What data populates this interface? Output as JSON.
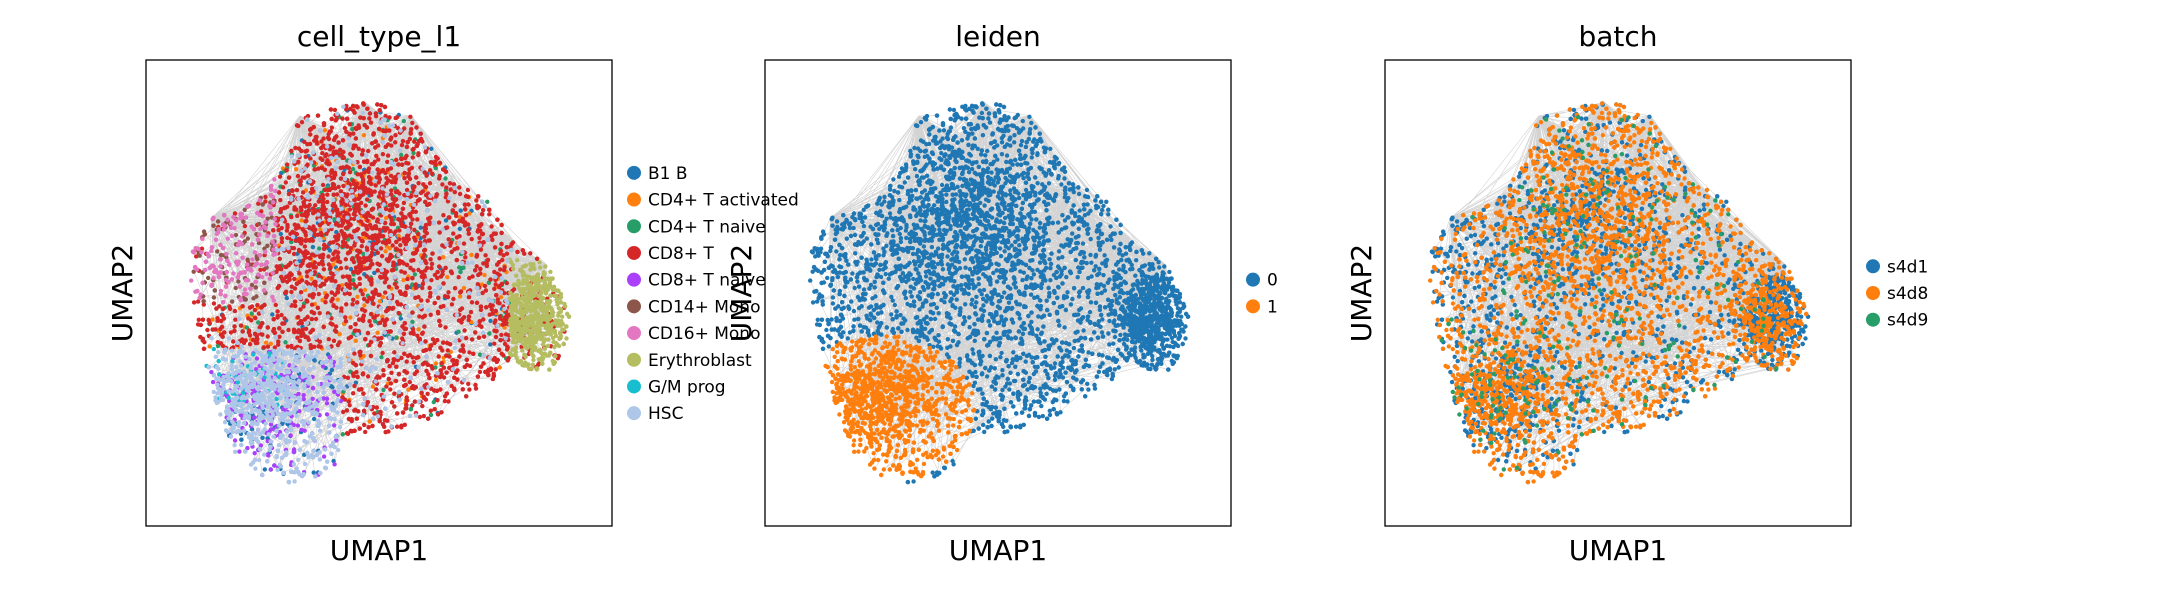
{
  "chart_data": [
    {
      "type": "scatter",
      "title": "cell_type_l1",
      "xlabel": "UMAP1",
      "ylabel": "UMAP2",
      "grid": false,
      "legend": "right",
      "series": [
        {
          "name": "B1 B",
          "color": "#1f77b4"
        },
        {
          "name": "CD4+ T activated",
          "color": "#ff7f0e"
        },
        {
          "name": "CD4+ T naive",
          "color": "#279e68"
        },
        {
          "name": "CD8+ T",
          "color": "#d62728"
        },
        {
          "name": "CD8+ T naive",
          "color": "#aa40fc"
        },
        {
          "name": "CD14+ Mono",
          "color": "#8c564b"
        },
        {
          "name": "CD16+ Mono",
          "color": "#e377c2"
        },
        {
          "name": "Erythroblast",
          "color": "#b5bd61"
        },
        {
          "name": "G/M prog",
          "color": "#17becf"
        },
        {
          "name": "HSC",
          "color": "#aec7e8"
        }
      ]
    },
    {
      "type": "scatter",
      "title": "leiden",
      "xlabel": "UMAP1",
      "ylabel": "UMAP2",
      "grid": false,
      "legend": "right",
      "series": [
        {
          "name": "0",
          "color": "#1f77b4"
        },
        {
          "name": "1",
          "color": "#ff7f0e"
        }
      ]
    },
    {
      "type": "scatter",
      "title": "batch",
      "xlabel": "UMAP1",
      "ylabel": "UMAP2",
      "grid": false,
      "legend": "right",
      "series": [
        {
          "name": "s4d1",
          "color": "#1f77b4"
        },
        {
          "name": "s4d8",
          "color": "#ff7f0e"
        },
        {
          "name": "s4d9",
          "color": "#279e68"
        }
      ]
    }
  ]
}
